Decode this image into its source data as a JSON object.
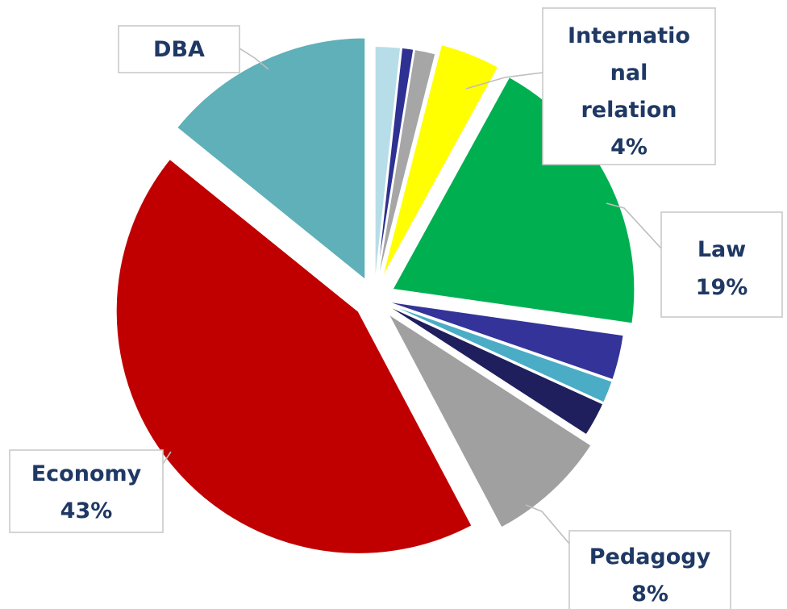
{
  "chart_data": {
    "type": "pie",
    "slices": [
      {
        "label": "",
        "percent": "",
        "value": 1.7,
        "color": "#b7dee8"
      },
      {
        "label": "",
        "percent": "",
        "value": 0.8,
        "color": "#2e3192"
      },
      {
        "label": "",
        "percent": "",
        "value": 1.4,
        "color": "#a6a6a6"
      },
      {
        "label": "International relation",
        "percent": "4%",
        "value": 4.0,
        "color": "#ffff00",
        "label_lines": [
          "Internatio",
          "nal",
          "relation",
          "4%"
        ]
      },
      {
        "label": "Law",
        "percent": "19%",
        "value": 19.0,
        "color": "#00b050",
        "label_lines": [
          "Law",
          "19%"
        ]
      },
      {
        "label": "",
        "percent": "",
        "value": 3.0,
        "color": "#333399"
      },
      {
        "label": "",
        "percent": "",
        "value": 1.5,
        "color": "#4bacc6"
      },
      {
        "label": "",
        "percent": "",
        "value": 2.3,
        "color": "#1f1f5e"
      },
      {
        "label": "Pedagogy",
        "percent": "8%",
        "value": 8.0,
        "color": "#a0a0a0",
        "label_lines": [
          "Pedagogy",
          "8%"
        ]
      },
      {
        "label": "Economy",
        "percent": "43%",
        "value": 43.0,
        "color": "#c00000",
        "label_lines": [
          "Economy",
          "43%"
        ]
      },
      {
        "label": "DBA",
        "percent": "",
        "value": 14.0,
        "color": "#5fb0b9",
        "label_lines": [
          "DBA"
        ]
      }
    ],
    "title": "",
    "legend": "none",
    "label_text_color": "#1f3864"
  }
}
